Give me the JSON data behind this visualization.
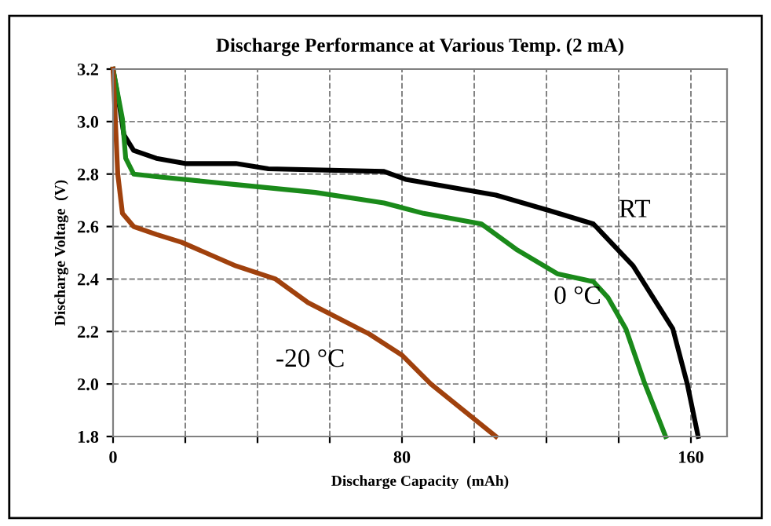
{
  "chart_data": {
    "type": "line",
    "title": "Discharge Performance at Various Temp. (2 mA)",
    "xlabel": "Discharge Capacity  (mAh)",
    "ylabel": "Discharge Voltage  (V)",
    "xlim": [
      0,
      170
    ],
    "xticks": [
      0,
      {
        "value": 20,
        "label": null
      },
      {
        "value": 40,
        "label": null
      },
      {
        "value": 60,
        "label": null
      },
      80,
      {
        "value": 100,
        "label": null
      },
      {
        "value": 120,
        "label": null
      },
      {
        "value": 140,
        "label": null
      },
      160
    ],
    "ylim": [
      1.8,
      3.2
    ],
    "yticks": [
      {
        "value": 1.8,
        "label": "1.8"
      },
      {
        "value": 2.0,
        "label": "2.0"
      },
      {
        "value": 2.2,
        "label": "2.2"
      },
      {
        "value": 2.4,
        "label": "2.4"
      },
      {
        "value": 2.6,
        "label": "2.6"
      },
      {
        "value": 2.8,
        "label": "2.8"
      },
      {
        "value": 3.0,
        "label": "3.0"
      },
      {
        "value": 3.2,
        "label": "3.2"
      }
    ],
    "grid": true,
    "legend": false,
    "marker": "none",
    "line_style": "solid",
    "series": [
      {
        "name": "RT",
        "color": "#000000",
        "x": [
          0,
          2,
          3,
          5.7,
          12,
          20,
          34,
          43,
          75,
          81,
          106,
          121,
          133,
          144,
          155,
          159,
          162
        ],
        "values": [
          3.2,
          3.04,
          2.95,
          2.89,
          2.86,
          2.84,
          2.84,
          2.82,
          2.81,
          2.78,
          2.72,
          2.66,
          2.61,
          2.45,
          2.21,
          2.0,
          1.8
        ]
      },
      {
        "name": "0 °C",
        "color": "#1a8a1a",
        "x": [
          0,
          2.6,
          3.5,
          5.7,
          12,
          34,
          56,
          75,
          86,
          102,
          112,
          123,
          133,
          137,
          142,
          147,
          153
        ],
        "values": [
          3.2,
          3.01,
          2.86,
          2.8,
          2.79,
          2.76,
          2.73,
          2.69,
          2.65,
          2.61,
          2.51,
          2.42,
          2.39,
          2.33,
          2.21,
          2.01,
          1.8
        ]
      },
      {
        "name": "-20 °C",
        "color": "#a0410d",
        "x": [
          0,
          1.3,
          2.6,
          5.7,
          12,
          19,
          34,
          45,
          54,
          71,
          80,
          88,
          106
        ],
        "values": [
          3.2,
          2.8,
          2.65,
          2.6,
          2.57,
          2.54,
          2.45,
          2.4,
          2.31,
          2.19,
          2.11,
          2.0,
          1.8
        ]
      }
    ]
  }
}
